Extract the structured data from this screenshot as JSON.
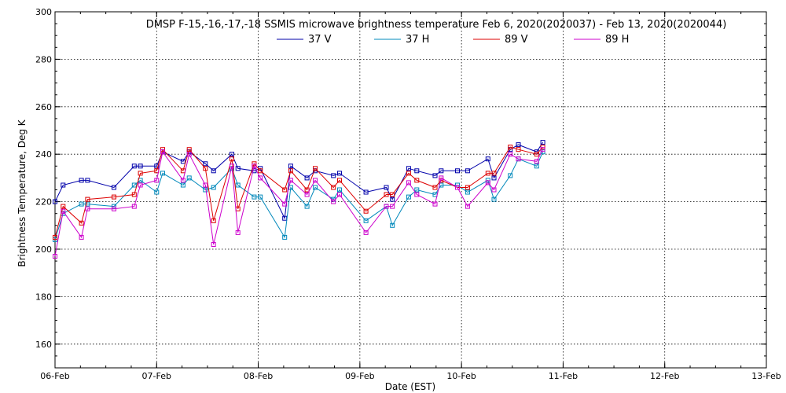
{
  "chart_data": {
    "type": "line",
    "title": "DMSP F-15,-16,-17,-18 SSMIS microwave brightness temperature Feb  6, 2020(2020037) - Feb 13, 2020(2020044)",
    "xlabel": "Date (EST)",
    "ylabel": "Brightness Temperature, Deg K",
    "x_ticks": [
      "06-Feb",
      "07-Feb",
      "08-Feb",
      "09-Feb",
      "10-Feb",
      "11-Feb",
      "12-Feb",
      "13-Feb"
    ],
    "xlim": [
      0,
      7
    ],
    "ylim": [
      150,
      300
    ],
    "y_ticks": [
      160,
      180,
      200,
      220,
      240,
      260,
      280,
      300
    ],
    "grid": true,
    "legend_position": "top-center",
    "series": [
      {
        "name": "37 V",
        "color": "#0000aa",
        "x": [
          0.0,
          0.08,
          0.26,
          0.32,
          0.58,
          0.78,
          0.84,
          1.0,
          1.06,
          1.26,
          1.32,
          1.48,
          1.56,
          1.74,
          1.8,
          1.96,
          2.02,
          2.26,
          2.32,
          2.48,
          2.56,
          2.74,
          2.8,
          3.06,
          3.26,
          3.32,
          3.48,
          3.56,
          3.74,
          3.8,
          3.96,
          4.06,
          4.26,
          4.32,
          4.48,
          4.56,
          4.74,
          4.8
        ],
        "values": [
          220,
          227,
          229,
          229,
          226,
          235,
          235,
          235,
          241,
          237,
          241,
          236,
          233,
          240,
          234,
          233,
          234,
          213,
          235,
          230,
          233,
          231,
          232,
          224,
          226,
          221,
          234,
          233,
          231,
          233,
          233,
          233,
          238,
          230,
          242,
          244,
          241,
          245
        ]
      },
      {
        "name": "37 H",
        "color": "#0088bb",
        "x": [
          0.0,
          0.08,
          0.26,
          0.32,
          0.58,
          0.78,
          0.84,
          1.0,
          1.06,
          1.26,
          1.32,
          1.48,
          1.56,
          1.74,
          1.8,
          1.96,
          2.02,
          2.26,
          2.32,
          2.48,
          2.56,
          2.74,
          2.8,
          3.06,
          3.26,
          3.32,
          3.48,
          3.56,
          3.74,
          3.8,
          3.96,
          4.06,
          4.26,
          4.32,
          4.48,
          4.56,
          4.74,
          4.8
        ],
        "values": [
          204,
          215,
          219,
          219,
          218,
          227,
          229,
          224,
          232,
          227,
          230,
          225,
          226,
          234,
          227,
          222,
          222,
          205,
          226,
          218,
          226,
          221,
          225,
          212,
          218,
          210,
          222,
          225,
          223,
          227,
          227,
          224,
          229,
          221,
          231,
          238,
          235,
          241
        ]
      },
      {
        "name": "89 V",
        "color": "#dd0000",
        "x": [
          0.0,
          0.08,
          0.26,
          0.32,
          0.58,
          0.78,
          0.84,
          1.0,
          1.06,
          1.26,
          1.32,
          1.48,
          1.56,
          1.74,
          1.8,
          1.96,
          2.02,
          2.26,
          2.32,
          2.48,
          2.56,
          2.74,
          2.8,
          3.06,
          3.26,
          3.32,
          3.48,
          3.56,
          3.74,
          3.8,
          3.96,
          4.06,
          4.26,
          4.32,
          4.48,
          4.56,
          4.74,
          4.8
        ],
        "values": [
          205,
          218,
          211,
          221,
          222,
          223,
          232,
          233,
          242,
          233,
          242,
          234,
          212,
          238,
          217,
          236,
          233,
          225,
          233,
          225,
          234,
          226,
          229,
          216,
          223,
          223,
          232,
          229,
          226,
          229,
          226,
          226,
          232,
          232,
          243,
          242,
          240,
          243
        ]
      },
      {
        "name": "89 H",
        "color": "#cc00cc",
        "x": [
          0.0,
          0.08,
          0.26,
          0.32,
          0.58,
          0.78,
          0.84,
          1.0,
          1.06,
          1.26,
          1.32,
          1.48,
          1.56,
          1.74,
          1.8,
          1.96,
          2.02,
          2.26,
          2.32,
          2.48,
          2.56,
          2.74,
          2.8,
          3.06,
          3.26,
          3.32,
          3.48,
          3.56,
          3.74,
          3.8,
          3.96,
          4.06,
          4.26,
          4.32,
          4.48,
          4.56,
          4.74,
          4.8
        ],
        "values": [
          197,
          216,
          205,
          217,
          217,
          218,
          227,
          229,
          241,
          229,
          240,
          227,
          202,
          235,
          207,
          235,
          230,
          219,
          229,
          223,
          229,
          220,
          223,
          207,
          218,
          218,
          228,
          223,
          219,
          230,
          226,
          218,
          228,
          225,
          240,
          238,
          237,
          242
        ]
      }
    ]
  }
}
